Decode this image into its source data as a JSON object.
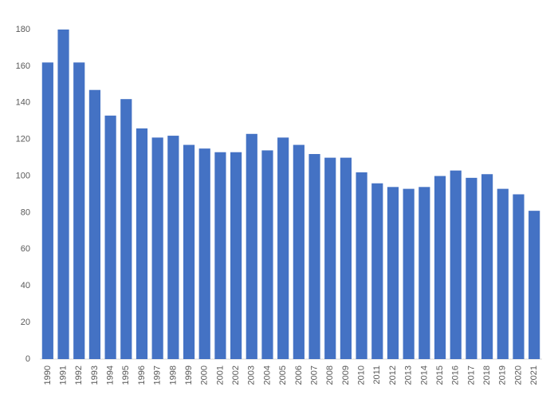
{
  "chart_data": {
    "type": "bar",
    "categories": [
      "1990",
      "1991",
      "1992",
      "1993",
      "1994",
      "1995",
      "1996",
      "1997",
      "1998",
      "1999",
      "2000",
      "2001",
      "2002",
      "2003",
      "2004",
      "2005",
      "2006",
      "2007",
      "2008",
      "2009",
      "2010",
      "2011",
      "2012",
      "2013",
      "2014",
      "2015",
      "2016",
      "2017",
      "2018",
      "2019",
      "2020",
      "2021"
    ],
    "values": [
      162,
      180,
      162,
      147,
      133,
      142,
      126,
      121,
      122,
      117,
      115,
      113,
      113,
      123,
      114,
      121,
      117,
      112,
      110,
      110,
      102,
      96,
      94,
      93,
      94,
      100,
      103,
      99,
      101,
      93,
      90,
      81
    ],
    "color": "#4472c4",
    "ylim": [
      0,
      180
    ],
    "yticks": [
      0,
      20,
      40,
      60,
      80,
      100,
      120,
      140,
      160,
      180
    ],
    "grid": false
  }
}
